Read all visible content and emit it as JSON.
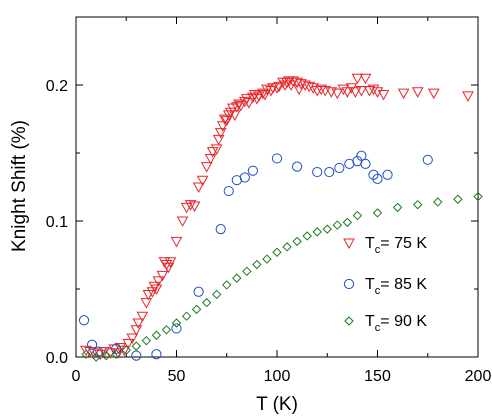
{
  "chart_data": {
    "type": "scatter",
    "xlabel": "T (K)",
    "ylabel": "Knight Shift  (%)",
    "xlim": [
      0,
      200
    ],
    "ylim": [
      0,
      0.25
    ],
    "x_ticks": [
      0,
      50,
      100,
      150,
      200
    ],
    "x_tick_labels": [
      "0",
      "50",
      "100",
      "150",
      "200"
    ],
    "y_ticks": [
      0,
      0.1,
      0.2
    ],
    "y_tick_labels": [
      "0.0",
      "0.1",
      "0.2"
    ],
    "grid": false,
    "legend_position": "lower-right",
    "series": [
      {
        "name": "Tc= 75 K",
        "legend_main": "T",
        "legend_sub": "c",
        "legend_rest": "= 75 K",
        "marker": "triangle-down",
        "color": "#e8262b",
        "points": [
          [
            5,
            0.005
          ],
          [
            7,
            0.004
          ],
          [
            9,
            0.003
          ],
          [
            12,
            0.002
          ],
          [
            14,
            0.004
          ],
          [
            17,
            0.003
          ],
          [
            19,
            0.006
          ],
          [
            21,
            0.003
          ],
          [
            22,
            0.007
          ],
          [
            24,
            0.005
          ],
          [
            26,
            0.01
          ],
          [
            28,
            0.014
          ],
          [
            30,
            0.02
          ],
          [
            31,
            0.025
          ],
          [
            33,
            0.03
          ],
          [
            35,
            0.04
          ],
          [
            36,
            0.046
          ],
          [
            38,
            0.048
          ],
          [
            39,
            0.052
          ],
          [
            40,
            0.05
          ],
          [
            41,
            0.056
          ],
          [
            43,
            0.06
          ],
          [
            44,
            0.07
          ],
          [
            45,
            0.068
          ],
          [
            46,
            0.066
          ],
          [
            47,
            0.07
          ],
          [
            50,
            0.085
          ],
          [
            53,
            0.1
          ],
          [
            55,
            0.11
          ],
          [
            57,
            0.112
          ],
          [
            59,
            0.111
          ],
          [
            61,
            0.125
          ],
          [
            63,
            0.13
          ],
          [
            65,
            0.14
          ],
          [
            67,
            0.146
          ],
          [
            68,
            0.151
          ],
          [
            70,
            0.153
          ],
          [
            71,
            0.16
          ],
          [
            72,
            0.165
          ],
          [
            73,
            0.17
          ],
          [
            74,
            0.175
          ],
          [
            75,
            0.174
          ],
          [
            76,
            0.178
          ],
          [
            77,
            0.18
          ],
          [
            78,
            0.183
          ],
          [
            79,
            0.178
          ],
          [
            80,
            0.184
          ],
          [
            81,
            0.186
          ],
          [
            82,
            0.185
          ],
          [
            84,
            0.188
          ],
          [
            85,
            0.19
          ],
          [
            86,
            0.187
          ],
          [
            88,
            0.191
          ],
          [
            89,
            0.193
          ],
          [
            90,
            0.19
          ],
          [
            91,
            0.192
          ],
          [
            93,
            0.194
          ],
          [
            94,
            0.193
          ],
          [
            95,
            0.197
          ],
          [
            97,
            0.196
          ],
          [
            98,
            0.198
          ],
          [
            100,
            0.198
          ],
          [
            101,
            0.199
          ],
          [
            103,
            0.202
          ],
          [
            104,
            0.2
          ],
          [
            105,
            0.202
          ],
          [
            106,
            0.203
          ],
          [
            107,
            0.2
          ],
          [
            108,
            0.203
          ],
          [
            110,
            0.202
          ],
          [
            111,
            0.197
          ],
          [
            112,
            0.201
          ],
          [
            114,
            0.2
          ],
          [
            116,
            0.199
          ],
          [
            118,
            0.198
          ],
          [
            120,
            0.196
          ],
          [
            122,
            0.197
          ],
          [
            124,
            0.196
          ],
          [
            127,
            0.195
          ],
          [
            130,
            0.194
          ],
          [
            133,
            0.197
          ],
          [
            135,
            0.195
          ],
          [
            137,
            0.198
          ],
          [
            139,
            0.195
          ],
          [
            140,
            0.205
          ],
          [
            142,
            0.196
          ],
          [
            144,
            0.205
          ],
          [
            146,
            0.196
          ],
          [
            148,
            0.197
          ],
          [
            150,
            0.195
          ],
          [
            153,
            0.193
          ],
          [
            163,
            0.194
          ],
          [
            170,
            0.195
          ],
          [
            178,
            0.194
          ],
          [
            195,
            0.192
          ]
        ]
      },
      {
        "name": "Tc= 85 K",
        "legend_main": "T",
        "legend_sub": "c",
        "legend_rest": "= 85 K",
        "marker": "circle",
        "color": "#1f4fc4",
        "points": [
          [
            4,
            0.027
          ],
          [
            8,
            0.009
          ],
          [
            11,
            0.004
          ],
          [
            20,
            0.006
          ],
          [
            30,
            0.001
          ],
          [
            40,
            0.002
          ],
          [
            50,
            0.021
          ],
          [
            61,
            0.048
          ],
          [
            72,
            0.094
          ],
          [
            76,
            0.122
          ],
          [
            80,
            0.13
          ],
          [
            84,
            0.132
          ],
          [
            88,
            0.137
          ],
          [
            100,
            0.146
          ],
          [
            110,
            0.14
          ],
          [
            120,
            0.136
          ],
          [
            126,
            0.136
          ],
          [
            131,
            0.139
          ],
          [
            136,
            0.142
          ],
          [
            140,
            0.144
          ],
          [
            142,
            0.148
          ],
          [
            144,
            0.142
          ],
          [
            148,
            0.134
          ],
          [
            150,
            0.131
          ],
          [
            155,
            0.134
          ],
          [
            175,
            0.145
          ]
        ]
      },
      {
        "name": "Tc= 90 K",
        "legend_main": "T",
        "legend_sub": "c",
        "legend_rest": "= 90 K",
        "marker": "diamond",
        "color": "#1f7a1f",
        "points": [
          [
            5,
            0.002
          ],
          [
            10,
            0.0
          ],
          [
            15,
            0.001
          ],
          [
            20,
            0.002
          ],
          [
            25,
            0.005
          ],
          [
            30,
            0.008
          ],
          [
            35,
            0.012
          ],
          [
            40,
            0.016
          ],
          [
            45,
            0.02
          ],
          [
            50,
            0.025
          ],
          [
            55,
            0.03
          ],
          [
            60,
            0.035
          ],
          [
            65,
            0.04
          ],
          [
            70,
            0.046
          ],
          [
            75,
            0.053
          ],
          [
            80,
            0.058
          ],
          [
            85,
            0.063
          ],
          [
            90,
            0.068
          ],
          [
            95,
            0.072
          ],
          [
            100,
            0.077
          ],
          [
            105,
            0.081
          ],
          [
            110,
            0.085
          ],
          [
            115,
            0.089
          ],
          [
            120,
            0.092
          ],
          [
            125,
            0.094
          ],
          [
            130,
            0.097
          ],
          [
            135,
            0.099
          ],
          [
            140,
            0.104
          ],
          [
            150,
            0.106
          ],
          [
            160,
            0.11
          ],
          [
            170,
            0.112
          ],
          [
            180,
            0.114
          ],
          [
            190,
            0.116
          ],
          [
            200,
            0.118
          ]
        ]
      }
    ]
  }
}
